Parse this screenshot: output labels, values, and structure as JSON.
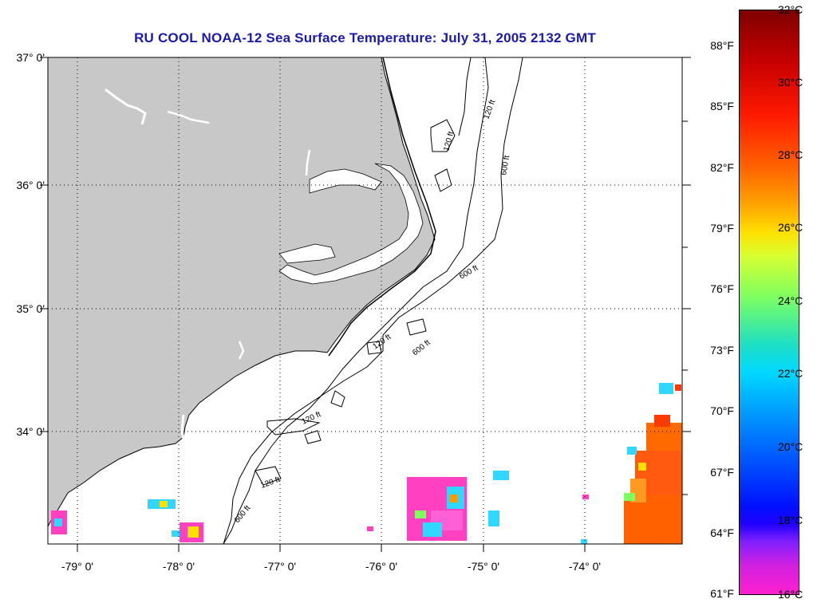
{
  "title": "RU COOL  NOAA-12  Sea Surface Temperature:  July 31, 2005 2132 GMT",
  "latitude_labels": [
    "37° 0'",
    "36° 0'",
    "35° 0'",
    "34° 0'"
  ],
  "longitude_labels": [
    "-79° 0'",
    "-78° 0'",
    "-77° 0'",
    "-76° 0'",
    "-75° 0'",
    "-74° 0'"
  ],
  "isobath_labels": [
    "120 ft",
    "600 ft",
    "120 ft",
    "600 ft",
    "120 ft",
    "600 ft",
    "120 ft",
    "120 ft",
    "600 ft"
  ],
  "colorbar": {
    "fahrenheit_labels": [
      "88°F",
      "85°F",
      "82°F",
      "79°F",
      "76°F",
      "73°F",
      "70°F",
      "67°F",
      "64°F",
      "61°F"
    ],
    "celsius_labels": [
      "32°C",
      "30°C",
      "28°C",
      "26°C",
      "24°C",
      "22°C",
      "20°C",
      "18°C",
      "16°C"
    ],
    "range_celsius": [
      16,
      32
    ]
  },
  "colors": {
    "land": "#c8c8c8",
    "title": "#1a1ab0",
    "sst_warm": "#ff6a00",
    "sst_cool": "#ff40c0"
  }
}
